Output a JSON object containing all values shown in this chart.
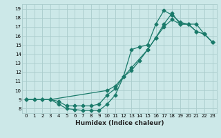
{
  "xlabel": "Humidex (Indice chaleur)",
  "xlim": [
    -0.5,
    23.5
  ],
  "ylim": [
    7.5,
    19.5
  ],
  "xticks": [
    0,
    1,
    2,
    3,
    4,
    5,
    6,
    7,
    8,
    9,
    10,
    11,
    12,
    13,
    14,
    15,
    16,
    17,
    18,
    19,
    20,
    21,
    22,
    23
  ],
  "yticks": [
    8,
    9,
    10,
    11,
    12,
    13,
    14,
    15,
    16,
    17,
    18,
    19
  ],
  "bg_color": "#cce8e8",
  "grid_color": "#aacccc",
  "line_color": "#1a7a6a",
  "line1_x": [
    0,
    1,
    2,
    3,
    10,
    11,
    12,
    13,
    15,
    16,
    17,
    18,
    19,
    20,
    21,
    22,
    23
  ],
  "line1_y": [
    9,
    9,
    9,
    9,
    10,
    10.5,
    11.5,
    12.5,
    14.5,
    15.8,
    17.3,
    18.5,
    17.3,
    17.3,
    16.5,
    16.2,
    15.3
  ],
  "line2_x": [
    0,
    1,
    2,
    3,
    4,
    5,
    6,
    7,
    8,
    9,
    10,
    11,
    12,
    13,
    14,
    15,
    16,
    17,
    18,
    19,
    20,
    21,
    22,
    23
  ],
  "line2_y": [
    9,
    9,
    9,
    9,
    8.8,
    8.3,
    8.3,
    8.3,
    8.3,
    8.5,
    9.5,
    10.2,
    11.5,
    12.2,
    13.3,
    14.5,
    15.8,
    17.0,
    17.8,
    17.3,
    17.3,
    16.5,
    16.2,
    15.3
  ],
  "line3_x": [
    3,
    4,
    5,
    6,
    7,
    8,
    9,
    10,
    11,
    12,
    13,
    14,
    15,
    16,
    17,
    18,
    19,
    20,
    21,
    22,
    23
  ],
  "line3_y": [
    9,
    8.5,
    8.0,
    7.9,
    7.8,
    7.8,
    7.8,
    8.5,
    9.5,
    11.5,
    14.5,
    14.8,
    15.0,
    17.3,
    18.8,
    18.3,
    17.5,
    17.3,
    17.3,
    16.2,
    15.3
  ]
}
